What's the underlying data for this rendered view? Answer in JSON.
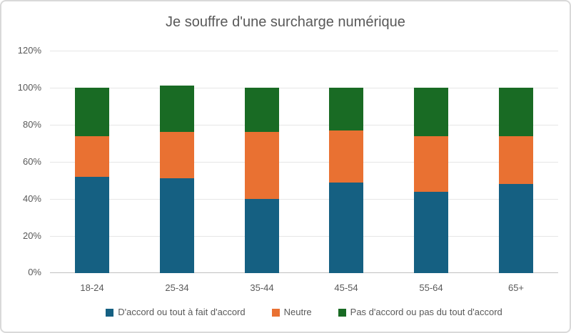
{
  "frame": {
    "background": "#FFFFFF",
    "border_color": "#D9D9D9"
  },
  "chart_data": {
    "type": "bar",
    "stacked": true,
    "title": "Je souffre d'une surcharge numérique",
    "xlabel": "",
    "ylabel": "",
    "categories": [
      "18-24",
      "25-34",
      "35-44",
      "45-54",
      "55-64",
      "65+"
    ],
    "series": [
      {
        "name": "D'accord ou tout à fait d'accord",
        "color": "#156082",
        "values": [
          52,
          51,
          40,
          49,
          44,
          48
        ]
      },
      {
        "name": "Neutre",
        "color": "#E97132",
        "values": [
          22,
          25,
          36,
          28,
          30,
          26
        ]
      },
      {
        "name": "Pas d'accord ou pas du tout d'accord",
        "color": "#196B24",
        "values": [
          26,
          25,
          24,
          23,
          26,
          26
        ]
      }
    ],
    "ylim": [
      0,
      120
    ],
    "ytick_step": 20,
    "ytick_labels": [
      "0%",
      "20%",
      "40%",
      "60%",
      "80%",
      "100%",
      "120%"
    ],
    "grid": true,
    "legend_position": "bottom",
    "text_color": "#595959",
    "gridline_color": "#E6E6E6",
    "axis_line_color": "#C0C0C0"
  }
}
